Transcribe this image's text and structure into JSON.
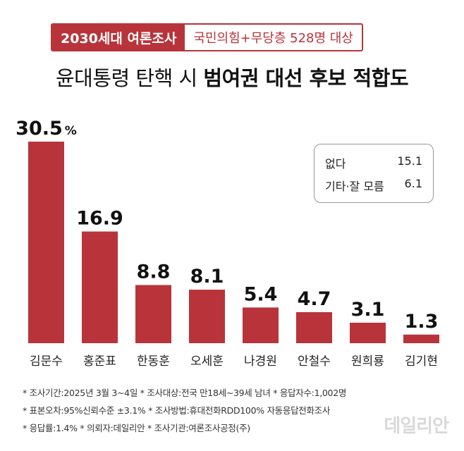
{
  "header": {
    "banner_left": "2030세대 여론조사",
    "banner_right": "국민의힘+무당층 528명 대상",
    "title_normal": "윤대통령 탄핵 시 ",
    "title_bold": "범여권 대선 후보 적합도"
  },
  "chart_data": {
    "type": "bar",
    "categories": [
      "김문수",
      "홍준표",
      "한동훈",
      "오세훈",
      "나경원",
      "안철수",
      "원희룡",
      "김기현"
    ],
    "values": [
      30.5,
      16.9,
      8.8,
      8.1,
      5.4,
      4.7,
      3.1,
      1.3
    ],
    "value_labels": [
      "30.5",
      "16.9",
      "8.8",
      "8.1",
      "5.4",
      "4.7",
      "3.1",
      "1.3"
    ],
    "unit": "%",
    "bar_color": "#b8343a",
    "grid": false
  },
  "legend": {
    "rows": [
      {
        "label": "없다",
        "value": "15.1"
      },
      {
        "label": "기타·잘 모름",
        "value": "6.1"
      }
    ]
  },
  "notes": [
    "* 조사기간:2025년 3월 3~4일  * 조사대상:전국 만18세~39세 남녀  * 응답자수:1,002명",
    "* 표본오차:95%신뢰수준 ±3.1%  * 조사방법:휴대전화RDD100% 자동응답전화조사",
    "* 응답률:1.4%  * 의뢰자:데일리안  * 조사기관:여론조사공정(주)"
  ],
  "watermark": "데일리안"
}
